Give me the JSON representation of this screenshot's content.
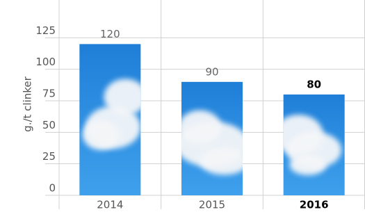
{
  "chart_data": {
    "type": "bar",
    "y_label": "g./t clinker",
    "categories": [
      "2014",
      "2015",
      "2016"
    ],
    "values": [
      120,
      90,
      80
    ],
    "color": "#2f8ee0",
    "highlight_index": 2,
    "ylim": [
      0,
      150
    ],
    "yticks": [
      0,
      25,
      50,
      75,
      100,
      125
    ],
    "grid": true
  }
}
